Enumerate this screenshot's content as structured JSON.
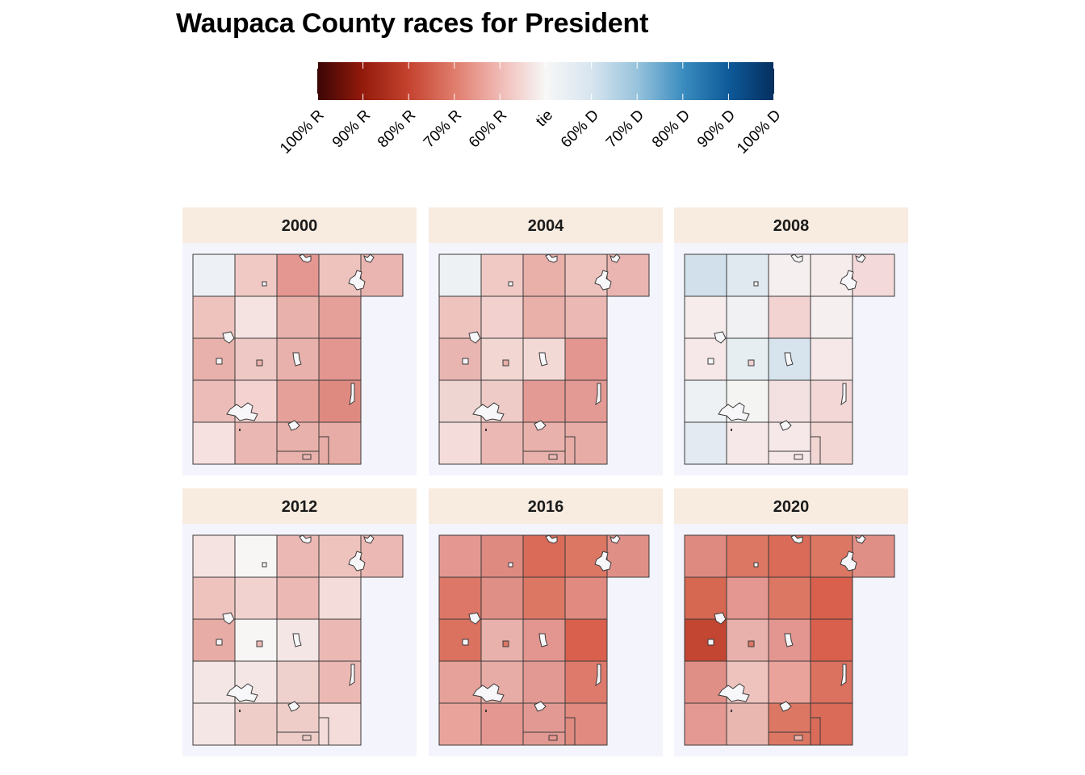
{
  "title": "Waupaca County races for President",
  "legend": {
    "labels": [
      "100% R",
      "90% R",
      "80% R",
      "70% R",
      "60% R",
      "tie",
      "60% D",
      "70% D",
      "80% D",
      "90% D",
      "100% D"
    ],
    "colors": [
      "#3b0505",
      "#941b0c",
      "#c4432f",
      "#e07c6c",
      "#f0bab5",
      "#f7f7f7",
      "#d7e5ef",
      "#98c3dc",
      "#3b8dc0",
      "#0e5a99",
      "#052f5f"
    ]
  },
  "panels": [
    {
      "year": "2000",
      "colors": [
        "#edf0f4",
        "#f0c9c5",
        "#e49790",
        "#eec3be",
        "#eec3be",
        "#f5e3e1",
        "#e9b1ab",
        "#e5a099",
        "#e9b1ab",
        "#eec8c4",
        "#e9b1ab",
        "#e39590",
        "#ebbcb8",
        "#f3d2d0",
        "#e5a09a",
        "#df8a80",
        "#f7e0e0",
        "#eab7b2",
        "#e9b1ab",
        "#e8aca6",
        "#eab5b0"
      ]
    },
    {
      "year": "2004",
      "colors": [
        "#eef1f4",
        "#f0c9c5",
        "#e9afa9",
        "#eec3be",
        "#eec3be",
        "#f1d0cd",
        "#e9afa9",
        "#ebb8b3",
        "#e9b5b0",
        "#f1d6d2",
        "#f3d9d6",
        "#e39590",
        "#eed5d2",
        "#eecbc7",
        "#e39a94",
        "#e39a94",
        "#f3dcd9",
        "#ebb8b3",
        "#e9b1ab",
        "#e8aca6",
        "#eab5b0"
      ]
    },
    {
      "year": "2008",
      "colors": [
        "#d2e0ec",
        "#e0e8f0",
        "#f6efef",
        "#f6ecec",
        "#f6ecec",
        "#f1f1f4",
        "#f3d2d2",
        "#f6efef",
        "#f6e8e8",
        "#e6eef2",
        "#d7e4ee",
        "#f6e8e8",
        "#eef1f4",
        "#f4f4f3",
        "#f3e0e0",
        "#f3d7d7",
        "#e3eaf1",
        "#f6e8e8",
        "#f6e8e8",
        "#f1d6d3",
        "#f3d9d9"
      ]
    },
    {
      "year": "2012",
      "colors": [
        "#f5e3e1",
        "#f7f6f5",
        "#ebb8b3",
        "#eec3be",
        "#eec3be",
        "#f2d2cf",
        "#ebb8b3",
        "#f3dcd9",
        "#e8aca6",
        "#f7f6f5",
        "#f3e6e4",
        "#ebb8b3",
        "#f3e6e4",
        "#f3e6e4",
        "#eed0cd",
        "#ebb8b3",
        "#f5e6e6",
        "#eecdc9",
        "#eecdc9",
        "#f3dcd9",
        "#ebb8b3"
      ]
    },
    {
      "year": "2016",
      "colors": [
        "#e49790",
        "#df8a80",
        "#d96b58",
        "#dc7764",
        "#dd7767",
        "#e08f87",
        "#dc7764",
        "#e08a80",
        "#db715f",
        "#e9b1ab",
        "#e39590",
        "#d8604c",
        "#e5a19a",
        "#e8aca6",
        "#e39993",
        "#dd7a6c",
        "#e9a39b",
        "#e49790",
        "#e39993",
        "#e08a80",
        "#e08f87"
      ]
    },
    {
      "year": "2020",
      "colors": [
        "#df8a80",
        "#dc7764",
        "#d96b58",
        "#dc7764",
        "#d66750",
        "#e49790",
        "#dc7764",
        "#d8604c",
        "#c24632",
        "#e9b1ab",
        "#e39590",
        "#d8604c",
        "#e08f87",
        "#eec3be",
        "#e9a39b",
        "#db715f",
        "#e49993",
        "#eab6b0",
        "#dc7764",
        "#d96b58",
        "#e08f87"
      ]
    }
  ]
}
